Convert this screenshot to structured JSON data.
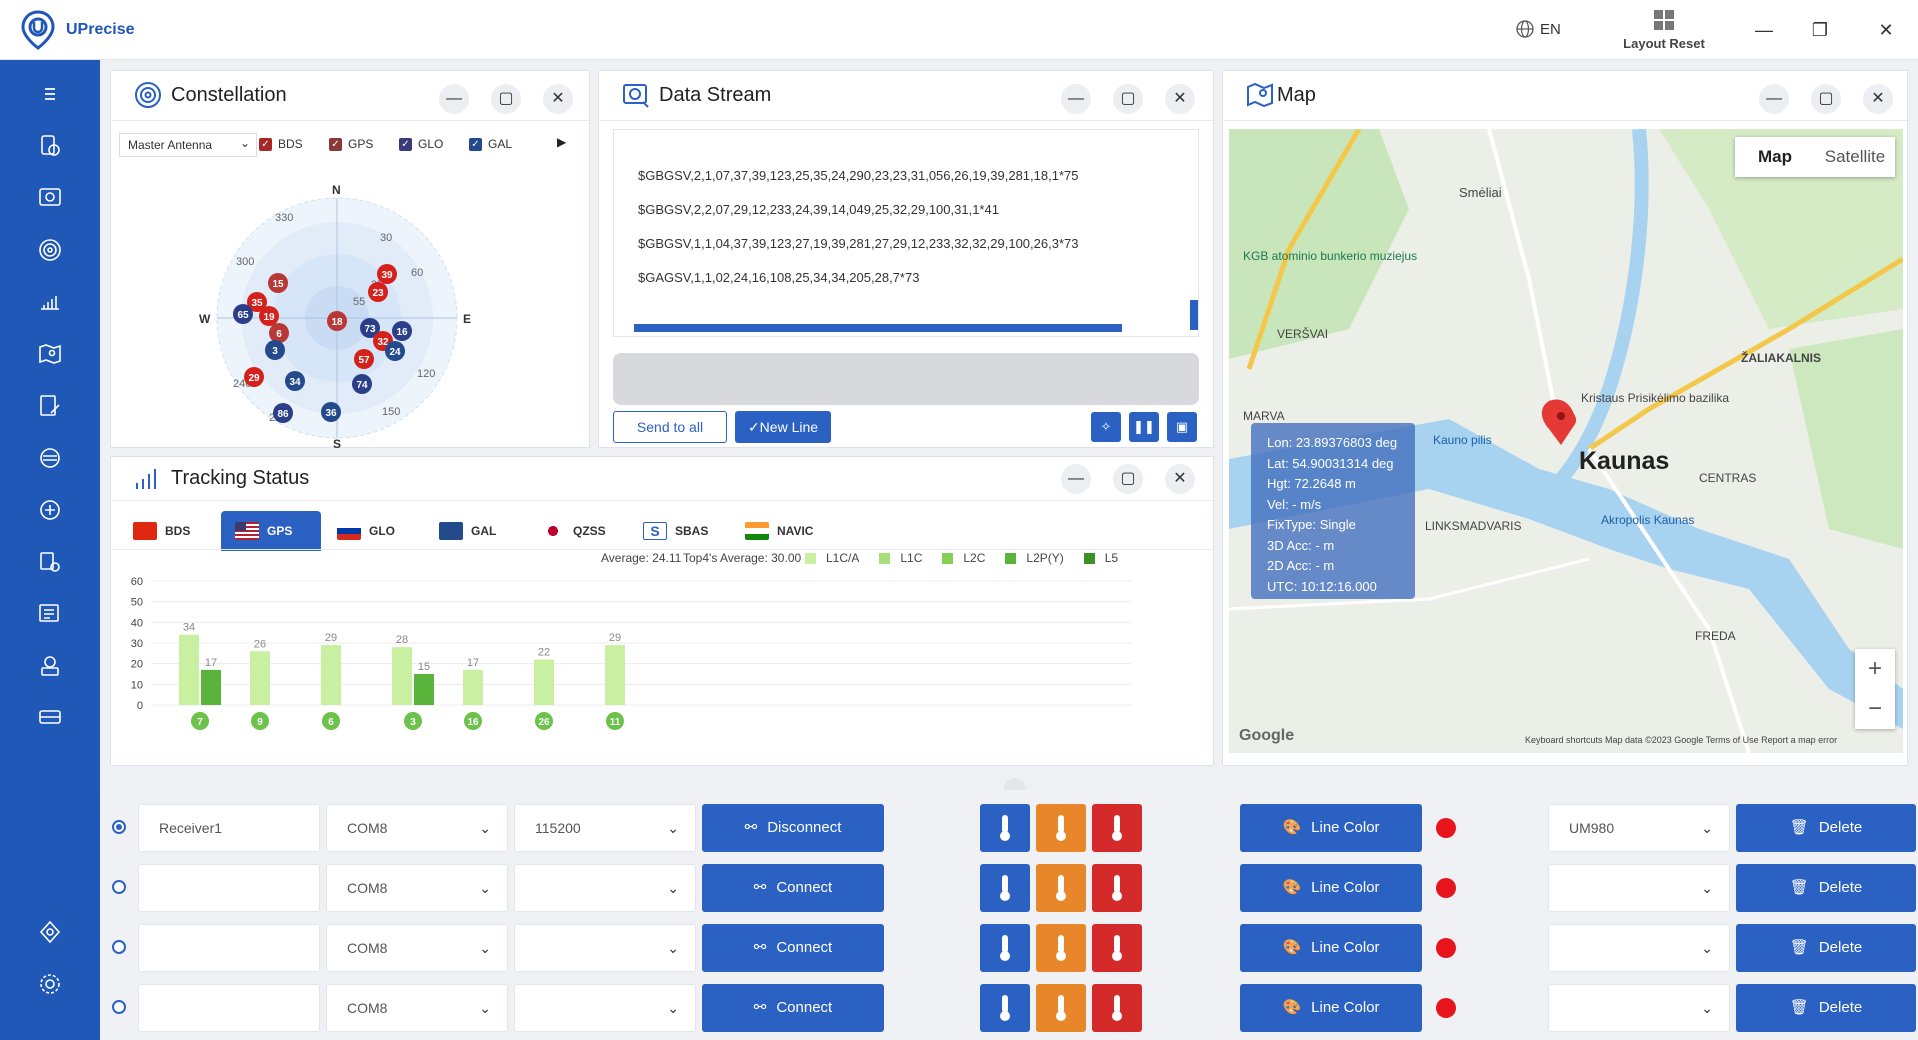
{
  "app": {
    "title": "UPrecise",
    "language": "EN",
    "layout_reset": "Layout Reset"
  },
  "colors": {
    "brand": "#1f58b6",
    "accent": "#2b61c2",
    "cold": "#2b61c2",
    "warm": "#e8862a",
    "hot": "#d42a2a",
    "line_color_dot": "#e8141c"
  },
  "constellation": {
    "title": "Constellation",
    "antenna": "Master Antenna",
    "filters": [
      "BDS",
      "GPS",
      "GLO",
      "GAL"
    ],
    "directions": {
      "n": "N",
      "e": "E",
      "s": "S",
      "w": "W"
    },
    "degree_labels": [
      "330",
      "30",
      "60",
      "300",
      "120",
      "240",
      "210",
      "150"
    ],
    "elevation_labels": [
      "35",
      "55"
    ],
    "satellites": [
      "39",
      "23",
      "15",
      "35",
      "19",
      "65",
      "6",
      "73",
      "32",
      "16",
      "24",
      "3",
      "57",
      "29",
      "34",
      "74",
      "86",
      "36",
      "18"
    ]
  },
  "data_stream": {
    "title": "Data Stream",
    "lines": [
      "$GBGSV,2,1,07,37,39,123,25,35,24,290,23,23,31,056,26,19,39,281,18,1*75",
      "$GBGSV,2,2,07,29,12,233,24,39,14,049,25,32,29,100,31,1*41",
      "$GBGSV,1,1,04,37,39,123,27,19,39,281,27,29,12,233,32,32,29,100,26,3*73",
      "$GAGSV,1,1,02,24,16,108,25,34,34,205,28,7*73"
    ],
    "send_to_all": "Send to all",
    "new_line": "✓New Line"
  },
  "tracking": {
    "title": "Tracking Status",
    "tabs": [
      "BDS",
      "GPS",
      "GLO",
      "GAL",
      "QZSS",
      "SBAS",
      "NAVIC"
    ],
    "active_tab": "GPS",
    "average": "Average: 24.11",
    "top4_average": "Top4's Average: 30.00",
    "legend": [
      {
        "name": "L1C/A",
        "color": "#c8f0a0"
      },
      {
        "name": "L1C",
        "color": "#a6e07a"
      },
      {
        "name": "L2C",
        "color": "#86d05a"
      },
      {
        "name": "L2P(Y)",
        "color": "#5ab43c"
      },
      {
        "name": "L5",
        "color": "#3d8f27"
      }
    ]
  },
  "chart_data": {
    "type": "bar",
    "categories": [
      "7",
      "9",
      "6",
      "3",
      "16",
      "26",
      "11"
    ],
    "series": [
      {
        "name": "L1C/A",
        "values": [
          34,
          26,
          29,
          28,
          17,
          22,
          29
        ]
      },
      {
        "name": "L2C",
        "values": [
          17,
          null,
          null,
          15,
          null,
          null,
          null
        ]
      }
    ],
    "ylim": [
      0,
      60
    ],
    "yticks": [
      0,
      10,
      20,
      30,
      40,
      50,
      60
    ],
    "grid": true
  },
  "map": {
    "title": "Map",
    "mode_map": "Map",
    "mode_satellite": "Satellite",
    "overlay": [
      "Lon: 23.89376803 deg",
      "Lat: 54.90031314 deg",
      "Hgt: 72.2648 m",
      "Vel: - m/s",
      "FixType: Single",
      "3D Acc:  - m",
      "2D Acc:  - m",
      "UTC: 10:12:16.000"
    ],
    "labels": {
      "city": "Kaunas",
      "smeliai": "Smėliai",
      "versvai": "VERŠVAI",
      "marva": "MARVA",
      "zaliakalnis": "ŽALIAKALNIS",
      "centras": "CENTRAS",
      "linksmadvaris": "LINKSMADVARIS",
      "freda": "FREDA",
      "kauno_pilis": "Kauno pilis",
      "kgb": "KGB atominio\nbunkerio muziejus",
      "akropolis": "Akropolis Kaunas",
      "bazilika": "Kristaus\nPrisikėlimo bazilika",
      "google": "Google",
      "footer": "Keyboard shortcuts   Map data ©2023 Google   Terms of Use   Report a map error"
    }
  },
  "receivers": [
    {
      "name": "Receiver1",
      "port": "COM8",
      "baud": "115200",
      "action": "Disconnect",
      "model": "UM980",
      "selected": true
    },
    {
      "name": "",
      "port": "COM8",
      "baud": "",
      "action": "Connect",
      "model": "",
      "selected": false
    },
    {
      "name": "",
      "port": "COM8",
      "baud": "",
      "action": "Connect",
      "model": "",
      "selected": false
    },
    {
      "name": "",
      "port": "COM8",
      "baud": "",
      "action": "Connect",
      "model": "",
      "selected": false
    }
  ],
  "receiver_labels": {
    "line_color": "Line Color",
    "delete": "Delete"
  }
}
